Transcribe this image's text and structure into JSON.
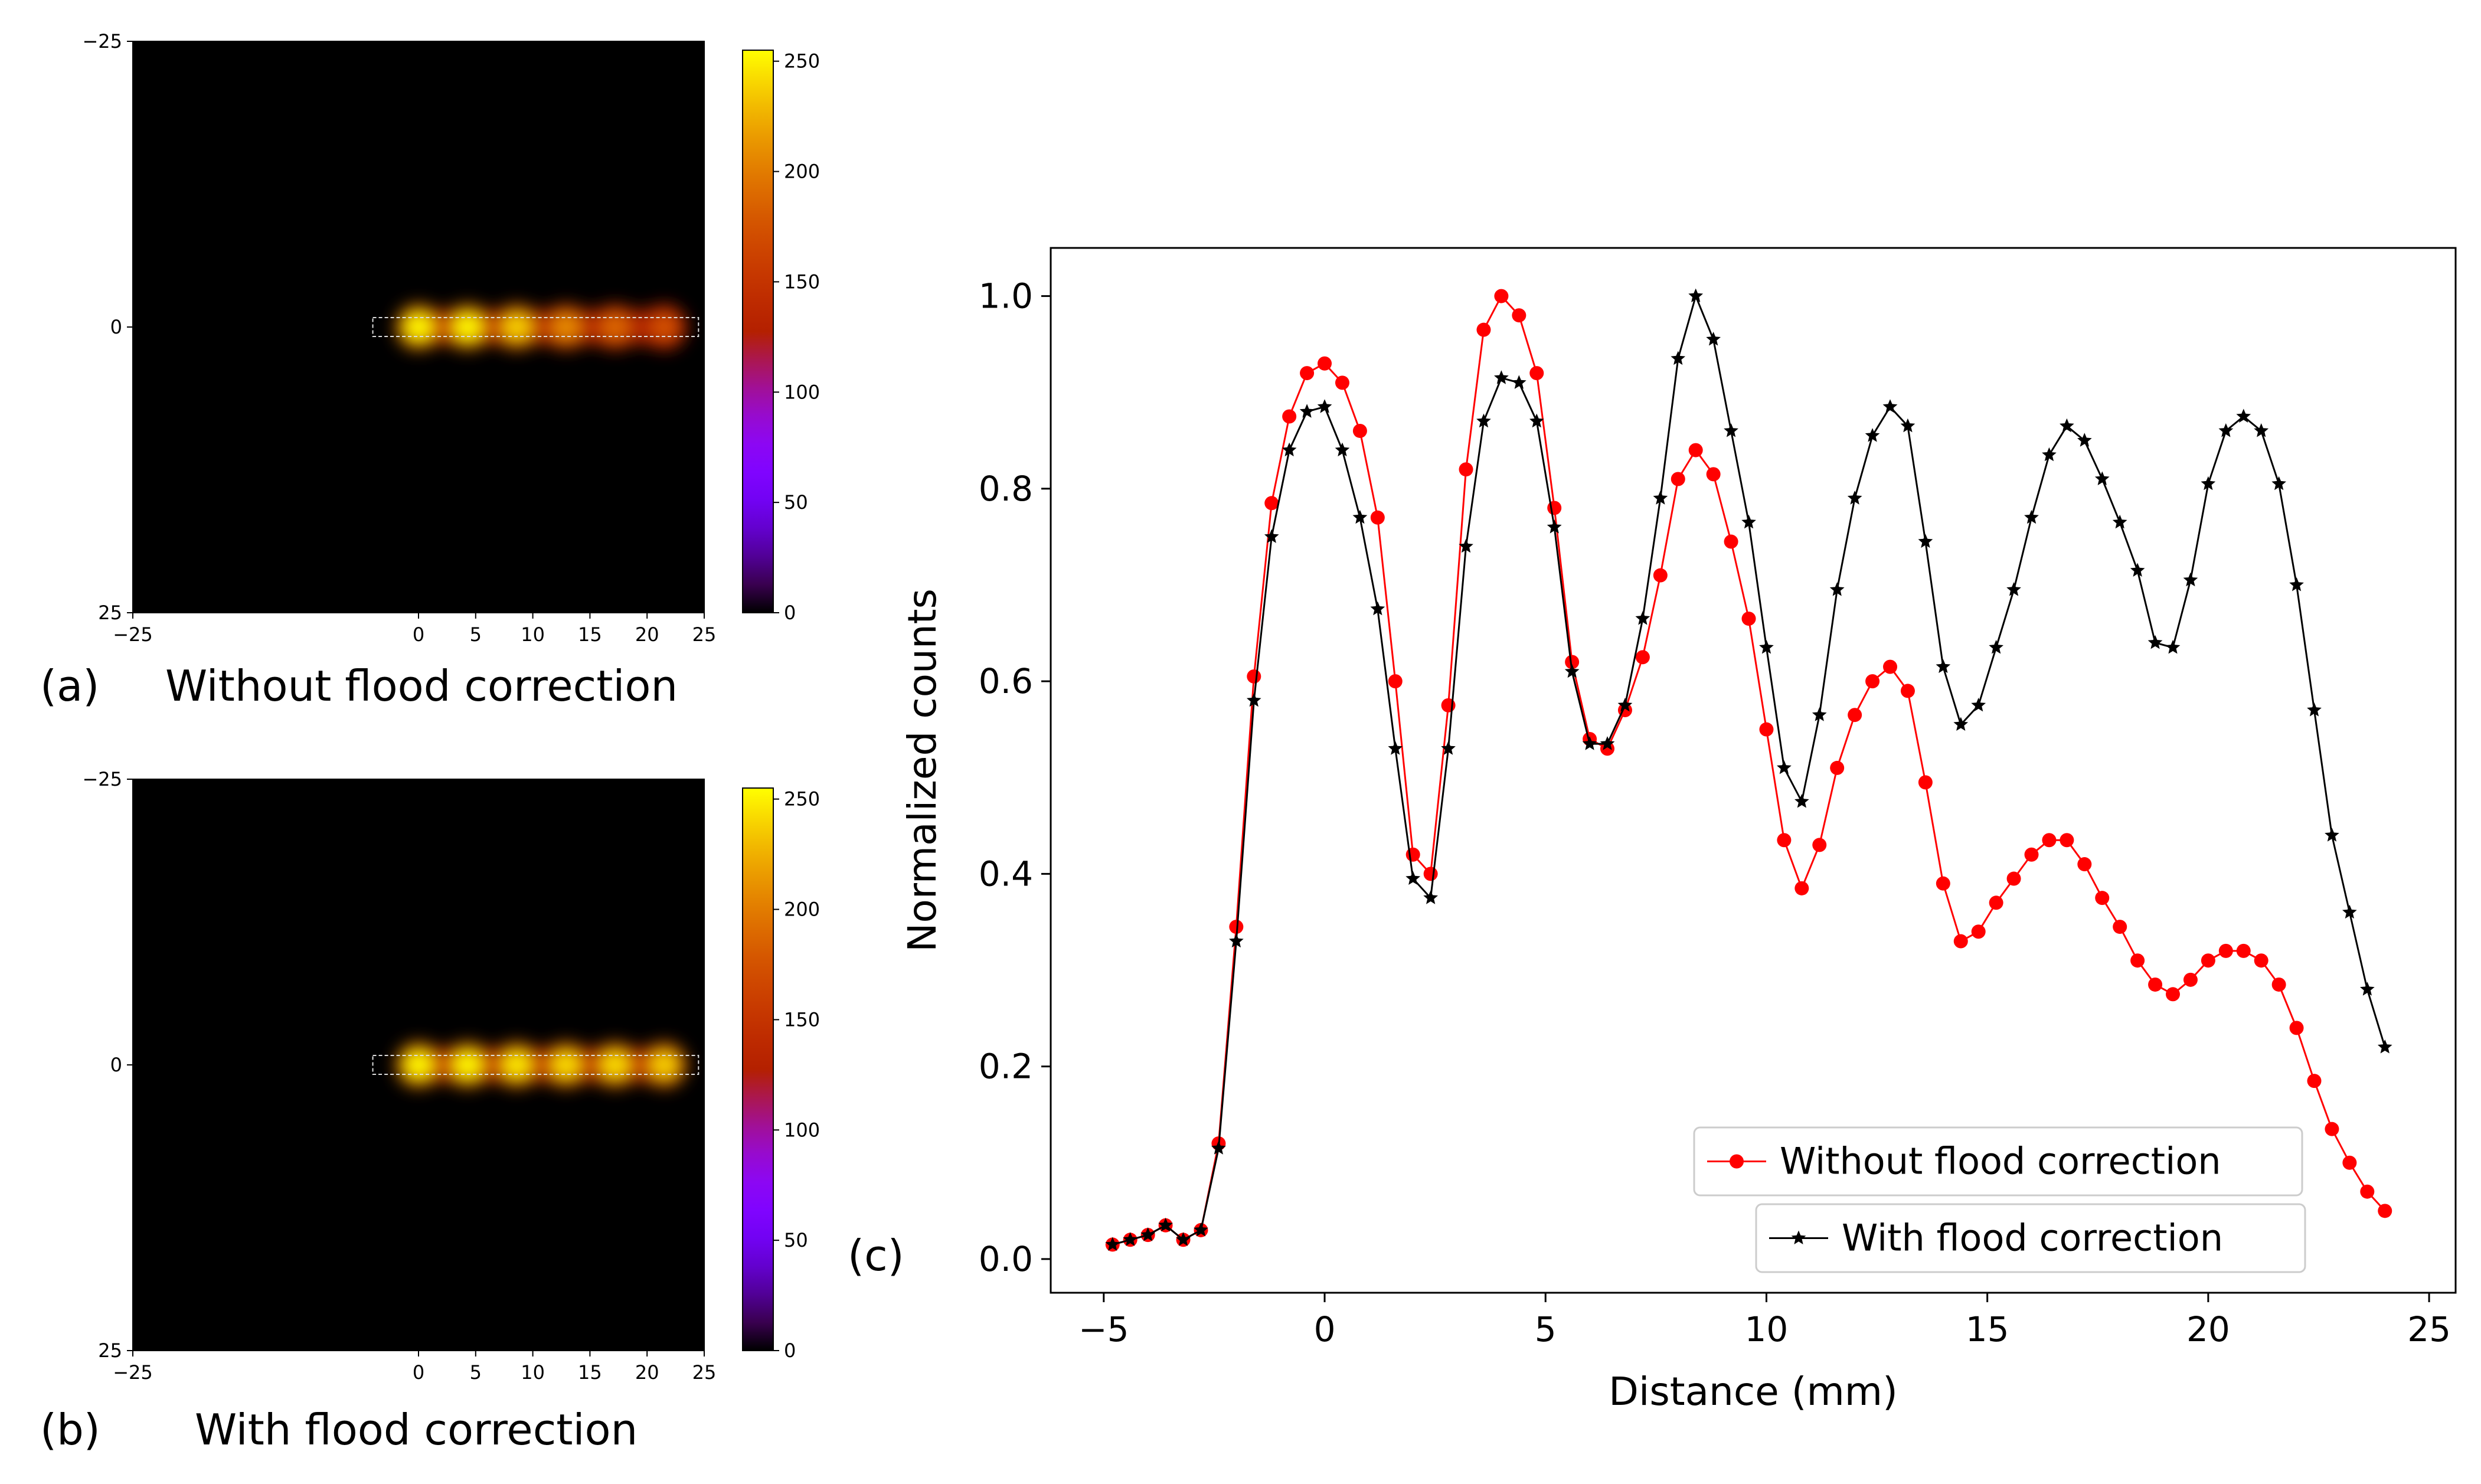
{
  "figure": {
    "panel_a": {
      "letter": "(a)",
      "caption": "Without flood correction"
    },
    "panel_b": {
      "letter": "(b)",
      "caption": "With flood correction"
    },
    "panel_c": {
      "letter": "(c)"
    }
  },
  "colors": {
    "red": "#ff0000",
    "black": "#000000",
    "background": "#ffffff"
  },
  "chart_data": [
    {
      "id": "image_a",
      "type": "heatmap",
      "title": "Without flood correction",
      "x_ticks": [
        "-25",
        "0",
        "5",
        "10",
        "15",
        "20",
        "25"
      ],
      "y_ticks": [
        "-25",
        "0",
        "25"
      ],
      "xlim": [
        -25,
        25
      ],
      "ylim": [
        -25,
        25
      ],
      "colorbar": {
        "range": [
          0,
          255
        ],
        "ticks": [
          "0",
          "50",
          "100",
          "150",
          "200",
          "250"
        ],
        "colormap": "gnuplot"
      },
      "hot_spots_x_mm": [
        0,
        4.3,
        8.6,
        12.9,
        17.2,
        21.5
      ],
      "hot_spot_intensity": [
        255,
        255,
        240,
        210,
        190,
        175
      ]
    },
    {
      "id": "image_b",
      "type": "heatmap",
      "title": "With flood correction",
      "x_ticks": [
        "-25",
        "0",
        "5",
        "10",
        "15",
        "20",
        "25"
      ],
      "y_ticks": [
        "-25",
        "0",
        "25"
      ],
      "xlim": [
        -25,
        25
      ],
      "ylim": [
        -25,
        25
      ],
      "colorbar": {
        "range": [
          0,
          255
        ],
        "ticks": [
          "0",
          "50",
          "100",
          "150",
          "200",
          "250"
        ],
        "colormap": "gnuplot"
      },
      "hot_spots_x_mm": [
        0,
        4.3,
        8.6,
        12.9,
        17.2,
        21.5
      ],
      "hot_spot_intensity": [
        255,
        255,
        250,
        245,
        245,
        240
      ]
    },
    {
      "id": "profile_c",
      "type": "line",
      "title": "",
      "xlabel": "Distance (mm)",
      "ylabel": "Normalized counts",
      "xlim": [
        -6.2,
        25.6
      ],
      "ylim": [
        -0.035,
        1.05
      ],
      "x_ticks": [
        -5,
        0,
        5,
        10,
        15,
        20,
        25
      ],
      "x_tick_labels": [
        "−5",
        "0",
        "5",
        "10",
        "15",
        "20",
        "25"
      ],
      "y_ticks": [
        0.0,
        0.2,
        0.4,
        0.6,
        0.8,
        1.0
      ],
      "y_tick_labels": [
        "0.0",
        "0.2",
        "0.4",
        "0.6",
        "0.8",
        "1.0"
      ],
      "legend_position": "lower-right",
      "series": [
        {
          "name": "Without flood correction",
          "color": "#ff0000",
          "marker": "circle",
          "x": [
            -4.8,
            -4.4,
            -4.0,
            -3.6,
            -3.2,
            -2.8,
            -2.4,
            -2.0,
            -1.6,
            -1.2,
            -0.8,
            -0.4,
            0.0,
            0.4,
            0.8,
            1.2,
            1.6,
            2.0,
            2.4,
            2.8,
            3.2,
            3.6,
            4.0,
            4.4,
            4.8,
            5.2,
            5.6,
            6.0,
            6.4,
            6.8,
            7.2,
            7.6,
            8.0,
            8.4,
            8.8,
            9.2,
            9.6,
            10.0,
            10.4,
            10.8,
            11.2,
            11.6,
            12.0,
            12.4,
            12.8,
            13.2,
            13.6,
            14.0,
            14.4,
            14.8,
            15.2,
            15.6,
            16.0,
            16.4,
            16.8,
            17.2,
            17.6,
            18.0,
            18.4,
            18.8,
            19.2,
            19.6,
            20.0,
            20.4,
            20.8,
            21.2,
            21.6,
            22.0,
            22.4,
            22.8,
            23.2,
            23.6,
            24.0
          ],
          "y": [
            0.015,
            0.02,
            0.025,
            0.035,
            0.02,
            0.03,
            0.12,
            0.345,
            0.605,
            0.785,
            0.875,
            0.92,
            0.93,
            0.91,
            0.86,
            0.77,
            0.6,
            0.42,
            0.4,
            0.575,
            0.82,
            0.965,
            1.0,
            0.98,
            0.92,
            0.78,
            0.62,
            0.54,
            0.53,
            0.57,
            0.625,
            0.71,
            0.81,
            0.84,
            0.815,
            0.745,
            0.665,
            0.55,
            0.435,
            0.385,
            0.43,
            0.51,
            0.565,
            0.6,
            0.615,
            0.59,
            0.495,
            0.39,
            0.33,
            0.34,
            0.37,
            0.395,
            0.42,
            0.435,
            0.435,
            0.41,
            0.375,
            0.345,
            0.31,
            0.285,
            0.275,
            0.29,
            0.31,
            0.32,
            0.32,
            0.31,
            0.285,
            0.24,
            0.185,
            0.135,
            0.1,
            0.07,
            0.05
          ]
        },
        {
          "name": "With flood correction",
          "color": "#000000",
          "marker": "star",
          "x": [
            -4.8,
            -4.4,
            -4.0,
            -3.6,
            -3.2,
            -2.8,
            -2.4,
            -2.0,
            -1.6,
            -1.2,
            -0.8,
            -0.4,
            0.0,
            0.4,
            0.8,
            1.2,
            1.6,
            2.0,
            2.4,
            2.8,
            3.2,
            3.6,
            4.0,
            4.4,
            4.8,
            5.2,
            5.6,
            6.0,
            6.4,
            6.8,
            7.2,
            7.6,
            8.0,
            8.4,
            8.8,
            9.2,
            9.6,
            10.0,
            10.4,
            10.8,
            11.2,
            11.6,
            12.0,
            12.4,
            12.8,
            13.2,
            13.6,
            14.0,
            14.4,
            14.8,
            15.2,
            15.6,
            16.0,
            16.4,
            16.8,
            17.2,
            17.6,
            18.0,
            18.4,
            18.8,
            19.2,
            19.6,
            20.0,
            20.4,
            20.8,
            21.2,
            21.6,
            22.0,
            22.4,
            22.8,
            23.2,
            23.6,
            24.0
          ],
          "y": [
            0.015,
            0.02,
            0.025,
            0.035,
            0.02,
            0.03,
            0.115,
            0.33,
            0.58,
            0.75,
            0.84,
            0.88,
            0.885,
            0.84,
            0.77,
            0.675,
            0.53,
            0.395,
            0.375,
            0.53,
            0.74,
            0.87,
            0.915,
            0.91,
            0.87,
            0.76,
            0.61,
            0.535,
            0.535,
            0.575,
            0.665,
            0.79,
            0.935,
            1.0,
            0.955,
            0.86,
            0.765,
            0.635,
            0.51,
            0.475,
            0.565,
            0.695,
            0.79,
            0.855,
            0.885,
            0.865,
            0.745,
            0.615,
            0.555,
            0.575,
            0.635,
            0.695,
            0.77,
            0.835,
            0.865,
            0.85,
            0.81,
            0.765,
            0.715,
            0.64,
            0.635,
            0.705,
            0.805,
            0.86,
            0.875,
            0.86,
            0.805,
            0.7,
            0.57,
            0.44,
            0.36,
            0.28,
            0.22
          ]
        }
      ]
    }
  ]
}
